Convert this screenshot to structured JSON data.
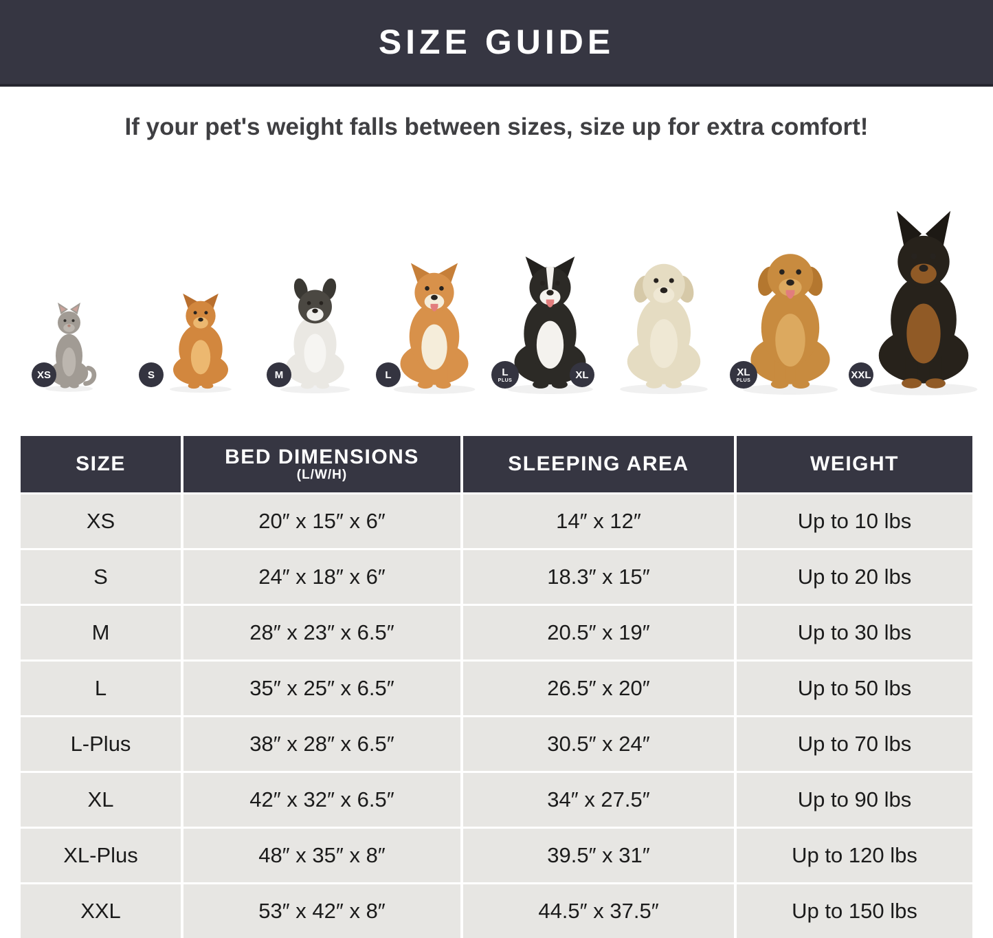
{
  "banner": {
    "title": "SIZE GUIDE"
  },
  "subtitle": "If your pet's weight falls between sizes, size up for extra comfort!",
  "colors": {
    "banner_bg": "#363642",
    "table_header_bg": "#363642",
    "row_bg": "#e7e6e3",
    "badge_bg": "#343440",
    "title_text": "#ffffff",
    "body_text": "#1b1b1b"
  },
  "pets": [
    {
      "id": "xs",
      "animal": "cat",
      "badge": "XS",
      "badge_sub": ""
    },
    {
      "id": "s",
      "animal": "pomeranian",
      "badge": "S",
      "badge_sub": ""
    },
    {
      "id": "m",
      "animal": "french-bulldog",
      "badge": "M",
      "badge_sub": ""
    },
    {
      "id": "l",
      "animal": "shiba-inu",
      "badge": "L",
      "badge_sub": ""
    },
    {
      "id": "l-plus",
      "animal": "border-collie",
      "badge": "L",
      "badge_sub": "PLUS"
    },
    {
      "id": "xl",
      "animal": "labrador",
      "badge": "XL",
      "badge_sub": ""
    },
    {
      "id": "xl-plus",
      "animal": "golden-retriever",
      "badge": "XL",
      "badge_sub": "PLUS"
    },
    {
      "id": "xxl",
      "animal": "doberman",
      "badge": "XXL",
      "badge_sub": ""
    }
  ],
  "table": {
    "columns": [
      {
        "label": "SIZE",
        "sub": ""
      },
      {
        "label": "BED DIMENSIONS",
        "sub": "(L/W/H)"
      },
      {
        "label": "SLEEPING AREA",
        "sub": ""
      },
      {
        "label": "WEIGHT",
        "sub": ""
      }
    ],
    "rows": [
      [
        "XS",
        "20″ x 15″ x 6″",
        "14″ x 12″",
        "Up to 10 lbs"
      ],
      [
        "S",
        "24″ x 18″ x 6″",
        "18.3″ x 15″",
        "Up to 20 lbs"
      ],
      [
        "M",
        "28″ x 23″ x 6.5″",
        "20.5″ x 19″",
        "Up to 30 lbs"
      ],
      [
        "L",
        "35″ x 25″ x 6.5″",
        "26.5″ x 20″",
        "Up to 50 lbs"
      ],
      [
        "L-Plus",
        "38″ x 28″ x 6.5″",
        "30.5″ x 24″",
        "Up to 70 lbs"
      ],
      [
        "XL",
        "42″ x 32″ x 6.5″",
        "34″ x 27.5″",
        "Up to 90 lbs"
      ],
      [
        "XL-Plus",
        "48″ x 35″ x 8″",
        "39.5″ x 31″",
        "Up to 120 lbs"
      ],
      [
        "XXL",
        "53″ x 42″ x 8″",
        "44.5″ x 37.5″",
        "Up to 150 lbs"
      ]
    ]
  }
}
